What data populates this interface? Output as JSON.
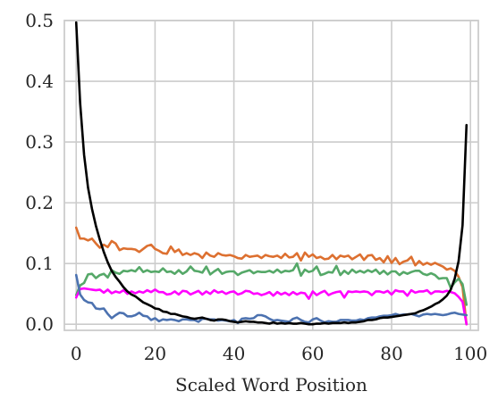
{
  "chart_data": {
    "type": "line",
    "title": "",
    "xlabel": "Scaled Word Position",
    "ylabel": "",
    "xlim": [
      -3,
      102
    ],
    "ylim": [
      -0.01,
      0.5
    ],
    "grid": true,
    "legend": "none",
    "x_ticks": [
      0,
      20,
      40,
      60,
      80,
      100
    ],
    "y_ticks": [
      0.0,
      0.1,
      0.2,
      0.3,
      0.4,
      0.5
    ],
    "x_tick_labels": [
      "0",
      "20",
      "40",
      "60",
      "80",
      "100"
    ],
    "y_tick_labels": [
      "0.0",
      "0.1",
      "0.2",
      "0.3",
      "0.4",
      "0.5"
    ],
    "series": [
      {
        "color": "#dd7030",
        "x": [
          0,
          1,
          2,
          3,
          4,
          5,
          6,
          7,
          8,
          9,
          10,
          11,
          12,
          13,
          14,
          15,
          16,
          17,
          18,
          19,
          20,
          21,
          22,
          23,
          24,
          25,
          26,
          27,
          28,
          29,
          30,
          31,
          32,
          33,
          34,
          35,
          36,
          37,
          38,
          39,
          40,
          41,
          42,
          43,
          44,
          45,
          46,
          47,
          48,
          49,
          50,
          51,
          52,
          53,
          54,
          55,
          56,
          57,
          58,
          59,
          60,
          61,
          62,
          63,
          64,
          65,
          66,
          67,
          68,
          69,
          70,
          71,
          72,
          73,
          74,
          75,
          76,
          77,
          78,
          79,
          80,
          81,
          82,
          83,
          84,
          85,
          86,
          87,
          88,
          89,
          90,
          91,
          92,
          93,
          94,
          95,
          96,
          97,
          98,
          99
        ],
        "values": [
          0.159,
          0.141,
          0.141,
          0.138,
          0.141,
          0.133,
          0.126,
          0.131,
          0.127,
          0.137,
          0.133,
          0.122,
          0.125,
          0.124,
          0.124,
          0.123,
          0.119,
          0.124,
          0.129,
          0.131,
          0.124,
          0.121,
          0.117,
          0.116,
          0.128,
          0.119,
          0.123,
          0.114,
          0.117,
          0.114,
          0.117,
          0.115,
          0.109,
          0.118,
          0.113,
          0.111,
          0.117,
          0.114,
          0.113,
          0.114,
          0.112,
          0.109,
          0.108,
          0.114,
          0.111,
          0.112,
          0.113,
          0.109,
          0.114,
          0.112,
          0.111,
          0.113,
          0.109,
          0.116,
          0.11,
          0.111,
          0.117,
          0.105,
          0.118,
          0.111,
          0.115,
          0.109,
          0.111,
          0.107,
          0.108,
          0.114,
          0.107,
          0.113,
          0.111,
          0.113,
          0.107,
          0.111,
          0.115,
          0.106,
          0.113,
          0.114,
          0.106,
          0.109,
          0.102,
          0.112,
          0.101,
          0.109,
          0.099,
          0.103,
          0.105,
          0.111,
          0.097,
          0.104,
          0.098,
          0.101,
          0.098,
          0.101,
          0.098,
          0.095,
          0.09,
          0.092,
          0.088,
          0.078,
          0.061,
          0.0
        ]
      },
      {
        "color": "#55a868",
        "x": [
          0,
          1,
          2,
          3,
          4,
          5,
          6,
          7,
          8,
          9,
          10,
          11,
          12,
          13,
          14,
          15,
          16,
          17,
          18,
          19,
          20,
          21,
          22,
          23,
          24,
          25,
          26,
          27,
          28,
          29,
          30,
          31,
          32,
          33,
          34,
          35,
          36,
          37,
          38,
          39,
          40,
          41,
          42,
          43,
          44,
          45,
          46,
          47,
          48,
          49,
          50,
          51,
          52,
          53,
          54,
          55,
          56,
          57,
          58,
          59,
          60,
          61,
          62,
          63,
          64,
          65,
          66,
          67,
          68,
          69,
          70,
          71,
          72,
          73,
          74,
          75,
          76,
          77,
          78,
          79,
          80,
          81,
          82,
          83,
          84,
          85,
          86,
          87,
          88,
          89,
          90,
          91,
          92,
          93,
          94,
          95,
          96,
          97,
          98,
          99
        ],
        "values": [
          0.048,
          0.064,
          0.068,
          0.082,
          0.083,
          0.076,
          0.081,
          0.083,
          0.077,
          0.089,
          0.085,
          0.083,
          0.088,
          0.087,
          0.089,
          0.087,
          0.094,
          0.086,
          0.089,
          0.086,
          0.087,
          0.086,
          0.092,
          0.086,
          0.087,
          0.083,
          0.089,
          0.083,
          0.087,
          0.095,
          0.088,
          0.087,
          0.085,
          0.095,
          0.082,
          0.087,
          0.091,
          0.083,
          0.086,
          0.087,
          0.087,
          0.081,
          0.085,
          0.087,
          0.089,
          0.084,
          0.087,
          0.086,
          0.086,
          0.088,
          0.085,
          0.09,
          0.085,
          0.088,
          0.087,
          0.089,
          0.1,
          0.08,
          0.09,
          0.086,
          0.088,
          0.095,
          0.081,
          0.083,
          0.086,
          0.085,
          0.096,
          0.081,
          0.088,
          0.083,
          0.09,
          0.085,
          0.088,
          0.085,
          0.089,
          0.086,
          0.09,
          0.083,
          0.088,
          0.082,
          0.087,
          0.087,
          0.081,
          0.086,
          0.083,
          0.086,
          0.088,
          0.088,
          0.083,
          0.081,
          0.084,
          0.081,
          0.075,
          0.076,
          0.076,
          0.06,
          0.069,
          0.075,
          0.066,
          0.032
        ]
      },
      {
        "color": "#ff00ff",
        "x": [
          0,
          1,
          2,
          3,
          4,
          5,
          6,
          7,
          8,
          9,
          10,
          11,
          12,
          13,
          14,
          15,
          16,
          17,
          18,
          19,
          20,
          21,
          22,
          23,
          24,
          25,
          26,
          27,
          28,
          29,
          30,
          31,
          32,
          33,
          34,
          35,
          36,
          37,
          38,
          39,
          40,
          41,
          42,
          43,
          44,
          45,
          46,
          47,
          48,
          49,
          50,
          51,
          52,
          53,
          54,
          55,
          56,
          57,
          58,
          59,
          60,
          61,
          62,
          63,
          64,
          65,
          66,
          67,
          68,
          69,
          70,
          71,
          72,
          73,
          74,
          75,
          76,
          77,
          78,
          79,
          80,
          81,
          82,
          83,
          84,
          85,
          86,
          87,
          88,
          89,
          90,
          91,
          92,
          93,
          94,
          95,
          96,
          97,
          98,
          99
        ],
        "values": [
          0.044,
          0.058,
          0.059,
          0.058,
          0.057,
          0.056,
          0.057,
          0.052,
          0.057,
          0.051,
          0.054,
          0.052,
          0.056,
          0.05,
          0.054,
          0.051,
          0.054,
          0.052,
          0.056,
          0.053,
          0.057,
          0.053,
          0.053,
          0.049,
          0.05,
          0.054,
          0.049,
          0.055,
          0.054,
          0.049,
          0.052,
          0.055,
          0.049,
          0.054,
          0.05,
          0.056,
          0.052,
          0.054,
          0.05,
          0.053,
          0.054,
          0.049,
          0.051,
          0.055,
          0.054,
          0.05,
          0.051,
          0.048,
          0.05,
          0.053,
          0.047,
          0.053,
          0.049,
          0.052,
          0.048,
          0.053,
          0.049,
          0.052,
          0.051,
          0.042,
          0.054,
          0.048,
          0.052,
          0.055,
          0.048,
          0.051,
          0.053,
          0.054,
          0.044,
          0.054,
          0.053,
          0.054,
          0.053,
          0.054,
          0.053,
          0.048,
          0.054,
          0.054,
          0.052,
          0.055,
          0.049,
          0.056,
          0.054,
          0.054,
          0.047,
          0.056,
          0.052,
          0.054,
          0.054,
          0.056,
          0.05,
          0.054,
          0.054,
          0.053,
          0.055,
          0.053,
          0.051,
          0.045,
          0.037,
          0.0
        ]
      },
      {
        "color": "#4c72b0",
        "x": [
          0,
          1,
          2,
          3,
          4,
          5,
          6,
          7,
          8,
          9,
          10,
          11,
          12,
          13,
          14,
          15,
          16,
          17,
          18,
          19,
          20,
          21,
          22,
          23,
          24,
          25,
          26,
          27,
          28,
          29,
          30,
          31,
          32,
          33,
          34,
          35,
          36,
          37,
          38,
          39,
          40,
          41,
          42,
          43,
          44,
          45,
          46,
          47,
          48,
          49,
          50,
          51,
          52,
          53,
          54,
          55,
          56,
          57,
          58,
          59,
          60,
          61,
          62,
          63,
          64,
          65,
          66,
          67,
          68,
          69,
          70,
          71,
          72,
          73,
          74,
          75,
          76,
          77,
          78,
          79,
          80,
          81,
          82,
          83,
          84,
          85,
          86,
          87,
          88,
          89,
          90,
          91,
          92,
          93,
          94,
          95,
          96,
          97,
          98,
          99
        ],
        "values": [
          0.081,
          0.049,
          0.04,
          0.036,
          0.035,
          0.026,
          0.025,
          0.026,
          0.017,
          0.01,
          0.015,
          0.019,
          0.018,
          0.013,
          0.013,
          0.015,
          0.019,
          0.014,
          0.013,
          0.007,
          0.01,
          0.005,
          0.008,
          0.007,
          0.008,
          0.007,
          0.005,
          0.008,
          0.008,
          0.007,
          0.007,
          0.004,
          0.009,
          0.009,
          0.008,
          0.008,
          0.006,
          0.007,
          0.006,
          0.005,
          0.007,
          0.002,
          0.009,
          0.01,
          0.009,
          0.01,
          0.015,
          0.015,
          0.013,
          0.009,
          0.006,
          0.007,
          0.006,
          0.005,
          0.004,
          0.009,
          0.011,
          0.007,
          0.004,
          0.003,
          0.008,
          0.01,
          0.006,
          0.003,
          0.005,
          0.004,
          0.004,
          0.007,
          0.007,
          0.007,
          0.006,
          0.006,
          0.008,
          0.007,
          0.01,
          0.011,
          0.011,
          0.013,
          0.014,
          0.014,
          0.015,
          0.017,
          0.015,
          0.016,
          0.016,
          0.017,
          0.015,
          0.013,
          0.016,
          0.017,
          0.016,
          0.017,
          0.016,
          0.015,
          0.016,
          0.018,
          0.019,
          0.017,
          0.016,
          0.015
        ]
      },
      {
        "color": "#000000",
        "x": [
          0,
          1,
          2,
          3,
          4,
          5,
          6,
          7,
          8,
          9,
          10,
          11,
          12,
          13,
          14,
          15,
          16,
          17,
          18,
          19,
          20,
          21,
          22,
          23,
          24,
          25,
          26,
          27,
          28,
          29,
          30,
          31,
          32,
          33,
          34,
          35,
          36,
          37,
          38,
          39,
          40,
          41,
          42,
          43,
          44,
          45,
          46,
          47,
          48,
          49,
          50,
          51,
          52,
          53,
          54,
          55,
          56,
          57,
          58,
          59,
          60,
          61,
          62,
          63,
          64,
          65,
          66,
          67,
          68,
          69,
          70,
          71,
          72,
          73,
          74,
          75,
          76,
          77,
          78,
          79,
          80,
          81,
          82,
          83,
          84,
          85,
          86,
          87,
          88,
          89,
          90,
          91,
          92,
          93,
          94,
          95,
          96,
          97,
          98,
          99
        ],
        "values": [
          0.497,
          0.364,
          0.279,
          0.225,
          0.19,
          0.162,
          0.139,
          0.119,
          0.102,
          0.088,
          0.078,
          0.07,
          0.061,
          0.054,
          0.049,
          0.046,
          0.041,
          0.036,
          0.033,
          0.03,
          0.026,
          0.025,
          0.021,
          0.02,
          0.017,
          0.017,
          0.015,
          0.013,
          0.012,
          0.01,
          0.009,
          0.01,
          0.011,
          0.009,
          0.007,
          0.006,
          0.008,
          0.008,
          0.007,
          0.005,
          0.004,
          0.003,
          0.004,
          0.005,
          0.004,
          0.004,
          0.003,
          0.003,
          0.002,
          0.001,
          0.003,
          0.001,
          0.002,
          0.001,
          0.002,
          0.001,
          0.001,
          0.002,
          0.001,
          0.0,
          0.0,
          0.001,
          0.001,
          0.002,
          0.001,
          0.002,
          0.002,
          0.002,
          0.003,
          0.002,
          0.003,
          0.003,
          0.004,
          0.005,
          0.007,
          0.007,
          0.008,
          0.01,
          0.011,
          0.011,
          0.012,
          0.013,
          0.014,
          0.015,
          0.016,
          0.017,
          0.018,
          0.021,
          0.023,
          0.026,
          0.029,
          0.033,
          0.036,
          0.041,
          0.047,
          0.057,
          0.075,
          0.104,
          0.163,
          0.328
        ]
      }
    ]
  }
}
